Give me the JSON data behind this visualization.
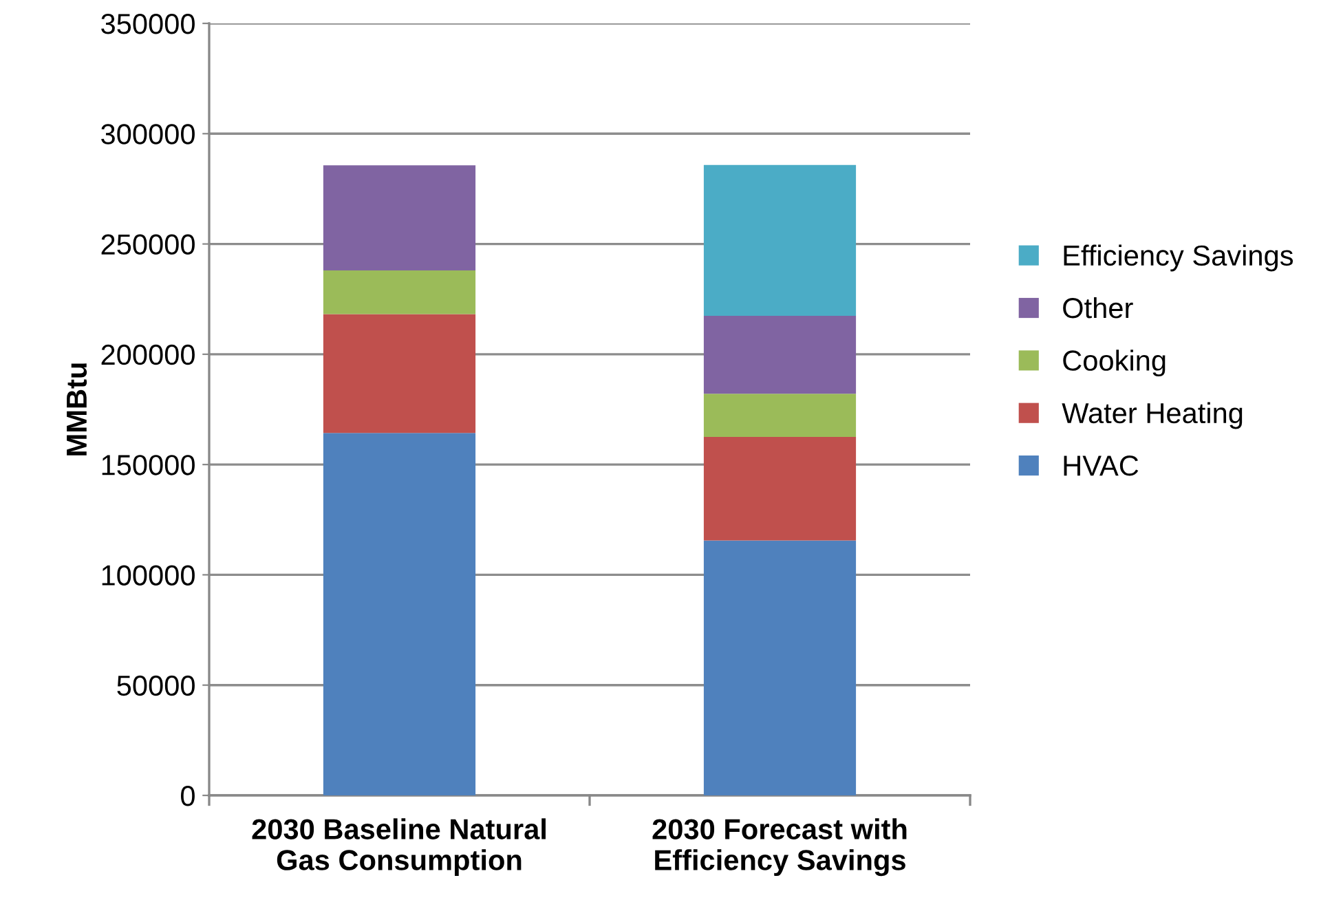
{
  "chart_data": {
    "type": "bar",
    "stacked": true,
    "ylabel": "MMBtu",
    "categories": [
      "2030 Baseline Natural Gas Consumption",
      "2030 Forecast with Efficiency Savings"
    ],
    "series": [
      {
        "name": "HVAC",
        "color": "#4f81bd",
        "values": [
          164300,
          115600
        ]
      },
      {
        "name": "Water Heating",
        "color": "#c0504d",
        "values": [
          53900,
          46900
        ]
      },
      {
        "name": "Cooking",
        "color": "#9bbb59",
        "values": [
          19800,
          19600
        ]
      },
      {
        "name": "Other",
        "color": "#8064a2",
        "values": [
          47700,
          35300
        ]
      },
      {
        "name": "Efficiency Savings",
        "color": "#4bacc6",
        "values": [
          null,
          68400
        ]
      }
    ],
    "ylim": [
      0,
      350000
    ],
    "yticks": [
      0,
      50000,
      100000,
      150000,
      200000,
      250000,
      300000,
      350000
    ],
    "grid": "y",
    "legend": "right"
  }
}
